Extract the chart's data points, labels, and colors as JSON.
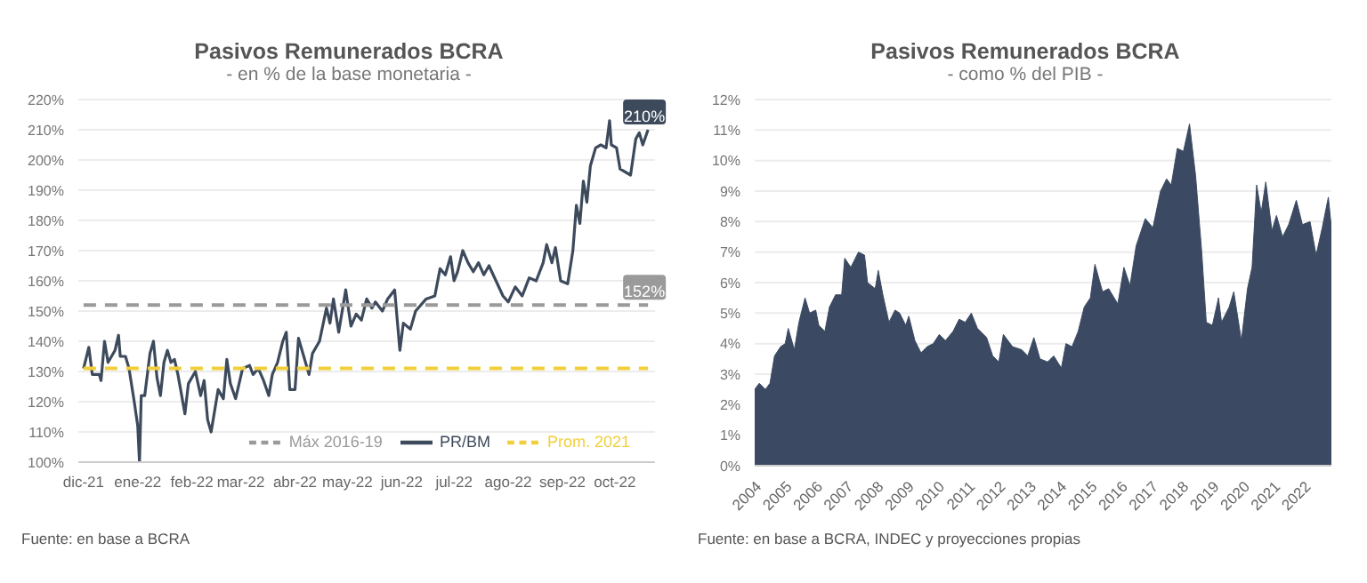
{
  "chart_data": [
    {
      "type": "line",
      "title": "Pasivos Remunerados BCRA",
      "subtitle": "- en % de la base monetaria -",
      "xlim": [
        "2021-11-28",
        "2022-10-24"
      ],
      "xticks": [
        {
          "value": "2021-12-01",
          "label": "dic-21"
        },
        {
          "value": "2022-01-01",
          "label": "ene-22"
        },
        {
          "value": "2022-02-01",
          "label": "feb-22"
        },
        {
          "value": "2022-03-01",
          "label": "mar-22"
        },
        {
          "value": "2022-04-01",
          "label": "abr-22"
        },
        {
          "value": "2022-05-01",
          "label": "may-22"
        },
        {
          "value": "2022-06-01",
          "label": "jun-22"
        },
        {
          "value": "2022-07-01",
          "label": "jul-22"
        },
        {
          "value": "2022-08-01",
          "label": "ago-22"
        },
        {
          "value": "2022-09-01",
          "label": "sep-22"
        },
        {
          "value": "2022-10-01",
          "label": "oct-22"
        }
      ],
      "ylim": [
        100,
        220
      ],
      "yticks": [
        {
          "value": 100,
          "label": "100%"
        },
        {
          "value": 110,
          "label": "110%"
        },
        {
          "value": 120,
          "label": "120%"
        },
        {
          "value": 130,
          "label": "130%"
        },
        {
          "value": 140,
          "label": "140%"
        },
        {
          "value": 150,
          "label": "150%"
        },
        {
          "value": 160,
          "label": "160%"
        },
        {
          "value": 170,
          "label": "170%"
        },
        {
          "value": 180,
          "label": "180%"
        },
        {
          "value": 190,
          "label": "190%"
        },
        {
          "value": 200,
          "label": "200%"
        },
        {
          "value": 210,
          "label": "210%"
        },
        {
          "value": 220,
          "label": "220%"
        }
      ],
      "grid": "y",
      "legend": "bottom right",
      "series": [
        {
          "name": "PR/BM",
          "color": "#3d4a5c",
          "line_style": "solid",
          "x": [
            "2021-12-01",
            "2021-12-04",
            "2021-12-06",
            "2021-12-10",
            "2021-12-11",
            "2021-12-13",
            "2021-12-15",
            "2021-12-19",
            "2021-12-21",
            "2021-12-22",
            "2021-12-25",
            "2021-12-27",
            "2021-12-30",
            "2022-01-01",
            "2022-01-02",
            "2022-01-03",
            "2022-01-05",
            "2022-01-08",
            "2022-01-10",
            "2022-01-12",
            "2022-01-14",
            "2022-01-16",
            "2022-01-18",
            "2022-01-20",
            "2022-01-22",
            "2022-01-24",
            "2022-01-28",
            "2022-01-30",
            "2022-02-03",
            "2022-02-06",
            "2022-02-08",
            "2022-02-10",
            "2022-02-12",
            "2022-02-16",
            "2022-02-19",
            "2022-02-21",
            "2022-02-23",
            "2022-02-26",
            "2022-03-02",
            "2022-03-06",
            "2022-03-08",
            "2022-03-11",
            "2022-03-14",
            "2022-03-17",
            "2022-03-19",
            "2022-03-22",
            "2022-03-25",
            "2022-03-27",
            "2022-03-29",
            "2022-04-01",
            "2022-04-03",
            "2022-04-06",
            "2022-04-09",
            "2022-04-11",
            "2022-04-15",
            "2022-04-19",
            "2022-04-21",
            "2022-04-23",
            "2022-04-26",
            "2022-04-30",
            "2022-05-03",
            "2022-05-06",
            "2022-05-09",
            "2022-05-12",
            "2022-05-15",
            "2022-05-17",
            "2022-05-21",
            "2022-05-24",
            "2022-05-28",
            "2022-05-31",
            "2022-06-02",
            "2022-06-06",
            "2022-06-09",
            "2022-06-12",
            "2022-06-15",
            "2022-06-20",
            "2022-06-23",
            "2022-06-26",
            "2022-06-29",
            "2022-07-01",
            "2022-07-03",
            "2022-07-06",
            "2022-07-09",
            "2022-07-12",
            "2022-07-15",
            "2022-07-18",
            "2022-07-21",
            "2022-07-25",
            "2022-07-29",
            "2022-08-01",
            "2022-08-05",
            "2022-08-09",
            "2022-08-13",
            "2022-08-17",
            "2022-08-21",
            "2022-08-23",
            "2022-08-26",
            "2022-08-28",
            "2022-08-31",
            "2022-09-04",
            "2022-09-07",
            "2022-09-09",
            "2022-09-11",
            "2022-09-13",
            "2022-09-15",
            "2022-09-17",
            "2022-09-20",
            "2022-09-23",
            "2022-09-26",
            "2022-09-28",
            "2022-09-29",
            "2022-10-02",
            "2022-10-04",
            "2022-10-10",
            "2022-10-13",
            "2022-10-15",
            "2022-10-17",
            "2022-10-20"
          ],
          "values": [
            131,
            138,
            129,
            129,
            127,
            140,
            133,
            137,
            142,
            135,
            135,
            131,
            120,
            112,
            100,
            122,
            122,
            136,
            140,
            128,
            122,
            133,
            137,
            133,
            134,
            129,
            116,
            126,
            130,
            122,
            127,
            114,
            110,
            124,
            121,
            134,
            126,
            121,
            131,
            132,
            129,
            131,
            127,
            122,
            129,
            133,
            140,
            143,
            124,
            124,
            141,
            135,
            129,
            136,
            140,
            151,
            146,
            154,
            143,
            157,
            145,
            149,
            147,
            154,
            151,
            153,
            150,
            154,
            157,
            137,
            146,
            144,
            150,
            152,
            154,
            155,
            164,
            162,
            168,
            160,
            163,
            170,
            166,
            163,
            166,
            162,
            165,
            160,
            155,
            153,
            158,
            155,
            161,
            160,
            166,
            172,
            166,
            171,
            160,
            159,
            170,
            185,
            179,
            193,
            186,
            198,
            204,
            205,
            204,
            213,
            205,
            204,
            197,
            195,
            207,
            209,
            205,
            210
          ]
        },
        {
          "name": "Prom. 2021",
          "color": "#f2cf3a",
          "line_style": "dashed",
          "x": [
            "2021-12-01",
            "2022-10-20"
          ],
          "values": [
            131,
            131
          ]
        },
        {
          "name": "Máx 2016-19",
          "color": "#9a9a9a",
          "line_style": "dashed",
          "x": [
            "2021-12-01",
            "2022-10-20"
          ],
          "values": [
            152,
            152
          ]
        }
      ],
      "annotations": [
        {
          "text": "210%",
          "x": "2022-10-20",
          "y": 210
        },
        {
          "text": "152%",
          "x": "2022-10-20",
          "y": 152
        },
        "Fuente: en base a BCRA"
      ]
    },
    {
      "type": "area",
      "title": "Pasivos Remunerados BCRA",
      "subtitle": "- como % del PIB -",
      "xlim": [
        2004,
        2022.9
      ],
      "xticks": [
        2004,
        2005,
        2006,
        2007,
        2008,
        2009,
        2010,
        2011,
        2012,
        2013,
        2014,
        2015,
        2016,
        2017,
        2018,
        2019,
        2020,
        2021,
        2022
      ],
      "ylim": [
        0,
        12
      ],
      "yticks": [
        {
          "value": 0,
          "label": "0%"
        },
        {
          "value": 1,
          "label": "1%"
        },
        {
          "value": 2,
          "label": "2%"
        },
        {
          "value": 3,
          "label": "3%"
        },
        {
          "value": 4,
          "label": "4%"
        },
        {
          "value": 5,
          "label": "5%"
        },
        {
          "value": 6,
          "label": "6%"
        },
        {
          "value": 7,
          "label": "7%"
        },
        {
          "value": 8,
          "label": "8%"
        },
        {
          "value": 9,
          "label": "9%"
        },
        {
          "value": 10,
          "label": "10%"
        },
        {
          "value": 11,
          "label": "11%"
        },
        {
          "value": 12,
          "label": "12%"
        }
      ],
      "grid": "y",
      "series": [
        {
          "color": "#3b4a62",
          "x": [
            2004.0,
            2004.15,
            2004.35,
            2004.5,
            2004.65,
            2004.85,
            2005.0,
            2005.1,
            2005.3,
            2005.45,
            2005.65,
            2005.8,
            2006.0,
            2006.1,
            2006.3,
            2006.45,
            2006.65,
            2006.85,
            2006.95,
            2007.15,
            2007.4,
            2007.6,
            2007.7,
            2007.95,
            2008.05,
            2008.2,
            2008.4,
            2008.6,
            2008.75,
            2008.95,
            2009.05,
            2009.25,
            2009.45,
            2009.65,
            2009.85,
            2010.05,
            2010.25,
            2010.5,
            2010.7,
            2010.9,
            2011.1,
            2011.3,
            2011.6,
            2011.8,
            2012.0,
            2012.15,
            2012.45,
            2012.75,
            2012.95,
            2013.15,
            2013.35,
            2013.6,
            2013.8,
            2014.05,
            2014.2,
            2014.4,
            2014.6,
            2014.8,
            2015.0,
            2015.15,
            2015.4,
            2015.6,
            2015.9,
            2016.1,
            2016.3,
            2016.5,
            2016.8,
            2017.05,
            2017.3,
            2017.5,
            2017.65,
            2017.85,
            2018.05,
            2018.25,
            2018.45,
            2018.65,
            2018.8,
            2019.0,
            2019.2,
            2019.3,
            2019.55,
            2019.7,
            2019.95,
            2020.15,
            2020.3,
            2020.45,
            2020.6,
            2020.75,
            2020.95,
            2021.1,
            2021.3,
            2021.5,
            2021.75,
            2021.95,
            2022.2,
            2022.4,
            2022.6,
            2022.8,
            2022.9
          ],
          "values": [
            2.5,
            2.7,
            2.5,
            2.7,
            3.6,
            3.9,
            4.0,
            4.5,
            3.8,
            4.7,
            5.5,
            5.0,
            5.1,
            4.6,
            4.4,
            5.2,
            5.6,
            5.6,
            6.8,
            6.5,
            7.0,
            6.9,
            6.0,
            5.8,
            6.4,
            5.6,
            4.7,
            5.1,
            5.0,
            4.6,
            4.9,
            4.1,
            3.7,
            3.9,
            4.0,
            4.3,
            4.1,
            4.4,
            4.8,
            4.7,
            5.0,
            4.5,
            4.2,
            3.6,
            3.4,
            4.3,
            3.9,
            3.8,
            3.6,
            4.2,
            3.5,
            3.4,
            3.6,
            3.2,
            4.0,
            3.9,
            4.4,
            5.2,
            5.5,
            6.6,
            5.7,
            5.8,
            5.3,
            6.5,
            5.9,
            7.2,
            8.1,
            7.8,
            9.0,
            9.4,
            9.2,
            10.4,
            10.3,
            11.2,
            9.5,
            7.0,
            4.7,
            4.6,
            5.5,
            4.7,
            5.2,
            5.7,
            4.1,
            5.8,
            6.5,
            9.2,
            8.3,
            9.3,
            7.7,
            8.2,
            7.5,
            7.9,
            8.7,
            7.9,
            8.0,
            6.9,
            7.8,
            8.8,
            7.8
          ]
        }
      ],
      "annotations": [
        "Fuente: en base a BCRA, INDEC y proyecciones propias"
      ]
    }
  ]
}
